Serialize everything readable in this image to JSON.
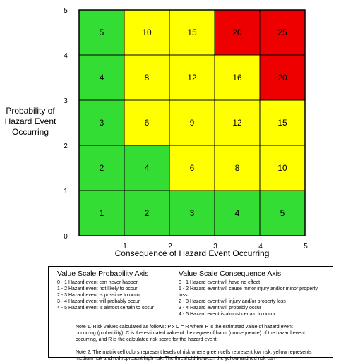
{
  "chart_data": {
    "type": "heatmap",
    "xlabel": "Consequence of Hazard Event Occurring",
    "ylabel": "Probability of Hazard Event Occurring",
    "xlim": [
      0,
      5
    ],
    "ylim": [
      0,
      5
    ],
    "xticks": [
      "1",
      "2",
      "3",
      "4",
      "5"
    ],
    "yticks": [
      "0",
      "1",
      "2",
      "3",
      "4",
      "5"
    ],
    "colors": {
      "green": "#33dd33",
      "yellow": "#ffff00",
      "red": "#ee0000"
    },
    "rows": [
      {
        "probability": 1,
        "values": [
          1,
          2,
          3,
          4,
          5
        ],
        "colors": [
          "green",
          "green",
          "green",
          "green",
          "green"
        ]
      },
      {
        "probability": 2,
        "values": [
          2,
          4,
          6,
          8,
          10
        ],
        "colors": [
          "green",
          "green",
          "yellow",
          "yellow",
          "yellow"
        ]
      },
      {
        "probability": 3,
        "values": [
          3,
          6,
          9,
          12,
          15
        ],
        "colors": [
          "green",
          "yellow",
          "yellow",
          "yellow",
          "yellow"
        ]
      },
      {
        "probability": 4,
        "values": [
          4,
          8,
          12,
          16,
          20
        ],
        "colors": [
          "green",
          "yellow",
          "yellow",
          "yellow",
          "red"
        ]
      },
      {
        "probability": 5,
        "values": [
          5,
          10,
          15,
          20,
          25
        ],
        "colors": [
          "green",
          "yellow",
          "yellow",
          "red",
          "red"
        ]
      }
    ]
  },
  "legend": {
    "probability_title": "Value Scale Probability Axis",
    "probability_items": [
      "0 - 1 Hazard event can never happen",
      "1 - 2 Hazard event not likely to occur",
      "2 - 3 Hazard event is possible to occur",
      "3 - 4 Hazard event will probably occur",
      "4 - 5 Hazard event is almost certain to occur"
    ],
    "consequence_title": "Value Scale Consequence Axis",
    "consequence_items": [
      "0 - 1 Hazard event will have no effect",
      "1 - 2 Hazard event will cause minor injury and/or minor property loss",
      "2 - 3 Hazard event will injury and/or property loss",
      "3 - 4 Hazard event will probably occur",
      "4 - 5 Hazard event is almost certain to occur"
    ],
    "note1": "Note 1.  Risk values calculated as follows: P x C = R where P is the estimated value of hazard event occurring (probability), C is the estimated value of the degree of harm (consequence) of the hazard event occurring, and R is the calculated risk score for the hazard event.",
    "note2": "Note 2.  The matrix cell colors represent levels of risk where green cells represent low risk, yellow represents medium risk and red represent high risk.  The threshold between the yellow and red risk can"
  }
}
